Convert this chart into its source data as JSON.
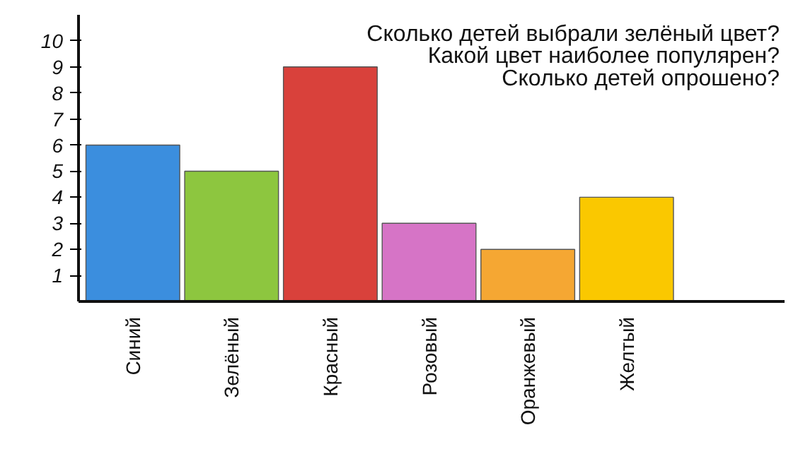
{
  "chart_data": {
    "type": "bar",
    "categories": [
      "Синий",
      "Зелёный",
      "Красный",
      "Розовый",
      "Оранжевый",
      "Желтый"
    ],
    "values": [
      6,
      5,
      9,
      3,
      2,
      4
    ],
    "colors": [
      "#3b8ede",
      "#8dc63f",
      "#d9413b",
      "#d674c6",
      "#f5a733",
      "#fac800"
    ],
    "ylim": [
      0,
      11
    ],
    "yticks": [
      1,
      2,
      3,
      4,
      5,
      6,
      7,
      8,
      9,
      10
    ],
    "grid": false,
    "annotations": [
      "Сколько детей выбрали зелёный цвет?",
      "Какой цвет наиболее популярен?",
      "Сколько детей опрошено?"
    ]
  }
}
